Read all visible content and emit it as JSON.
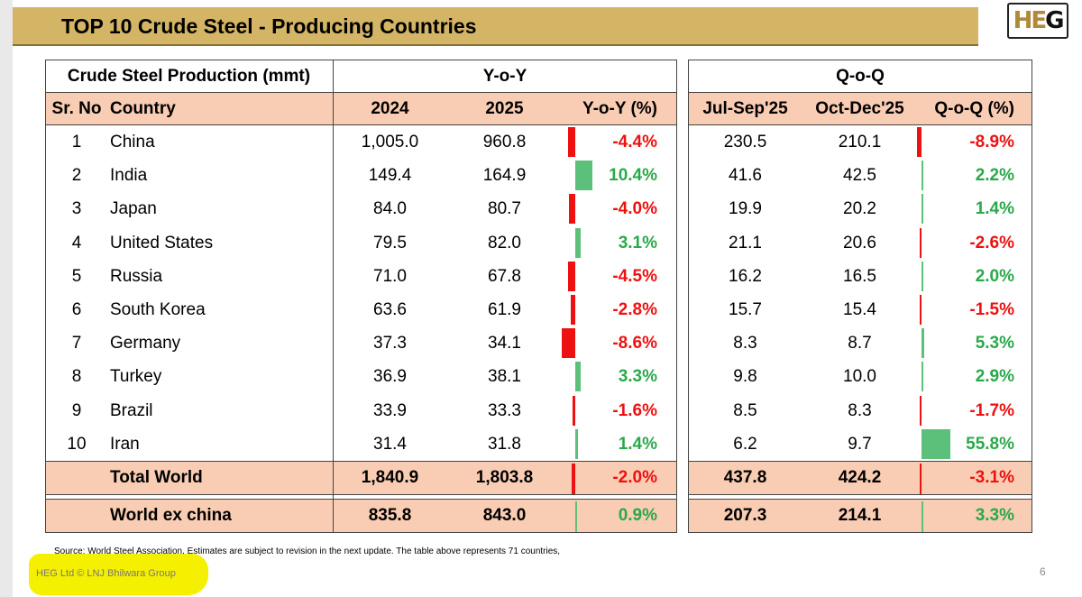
{
  "title": "TOP 10 Crude Steel - Producing Countries",
  "logo_text": "HEG",
  "header": {
    "production_label": "Crude Steel Production (mmt)",
    "yoy_group": "Y-o-Y",
    "qoq_group": "Q-o-Q"
  },
  "columns": {
    "sr_no": "Sr. No",
    "country": "Country",
    "y2024": "2024",
    "y2025": "2025",
    "yoy_pct": "Y-o-Y (%)",
    "jul_sep": "Jul-Sep'25",
    "oct_dec": "Oct-Dec'25",
    "qoq_pct": "Q-o-Q (%)"
  },
  "rows": [
    {
      "sr": "1",
      "country": "China",
      "y2024": "1,005.0",
      "y2025": "960.8",
      "yoy": "-4.4%",
      "yoy_val": -4.4,
      "q3": "230.5",
      "q4": "210.1",
      "qoq": "-8.9%",
      "qoq_val": -8.9
    },
    {
      "sr": "2",
      "country": "India",
      "y2024": "149.4",
      "y2025": "164.9",
      "yoy": "10.4%",
      "yoy_val": 10.4,
      "q3": "41.6",
      "q4": "42.5",
      "qoq": "2.2%",
      "qoq_val": 2.2
    },
    {
      "sr": "3",
      "country": "Japan",
      "y2024": "84.0",
      "y2025": "80.7",
      "yoy": "-4.0%",
      "yoy_val": -4.0,
      "q3": "19.9",
      "q4": "20.2",
      "qoq": "1.4%",
      "qoq_val": 1.4
    },
    {
      "sr": "4",
      "country": "United States",
      "y2024": "79.5",
      "y2025": "82.0",
      "yoy": "3.1%",
      "yoy_val": 3.1,
      "q3": "21.1",
      "q4": "20.6",
      "qoq": "-2.6%",
      "qoq_val": -2.6
    },
    {
      "sr": "5",
      "country": "Russia",
      "y2024": "71.0",
      "y2025": "67.8",
      "yoy": "-4.5%",
      "yoy_val": -4.5,
      "q3": "16.2",
      "q4": "16.5",
      "qoq": "2.0%",
      "qoq_val": 2.0
    },
    {
      "sr": "6",
      "country": "South Korea",
      "y2024": "63.6",
      "y2025": "61.9",
      "yoy": "-2.8%",
      "yoy_val": -2.8,
      "q3": "15.7",
      "q4": "15.4",
      "qoq": "-1.5%",
      "qoq_val": -1.5
    },
    {
      "sr": "7",
      "country": "Germany",
      "y2024": "37.3",
      "y2025": "34.1",
      "yoy": "-8.6%",
      "yoy_val": -8.6,
      "q3": "8.3",
      "q4": "8.7",
      "qoq": "5.3%",
      "qoq_val": 5.3
    },
    {
      "sr": "8",
      "country": "Turkey",
      "y2024": "36.9",
      "y2025": "38.1",
      "yoy": "3.3%",
      "yoy_val": 3.3,
      "q3": "9.8",
      "q4": "10.0",
      "qoq": "2.9%",
      "qoq_val": 2.9
    },
    {
      "sr": "9",
      "country": "Brazil",
      "y2024": "33.9",
      "y2025": "33.3",
      "yoy": "-1.6%",
      "yoy_val": -1.6,
      "q3": "8.5",
      "q4": "8.3",
      "qoq": "-1.7%",
      "qoq_val": -1.7
    },
    {
      "sr": "10",
      "country": "Iran",
      "y2024": "31.4",
      "y2025": "31.8",
      "yoy": "1.4%",
      "yoy_val": 1.4,
      "q3": "6.2",
      "q4": "9.7",
      "qoq": "55.8%",
      "qoq_val": 55.8
    }
  ],
  "total": {
    "label": "Total World",
    "y2024": "1,840.9",
    "y2025": "1,803.8",
    "yoy": "-2.0%",
    "yoy_val": -2.0,
    "q3": "437.8",
    "q4": "424.2",
    "qoq": "-3.1%",
    "qoq_val": -3.1
  },
  "ex_china": {
    "label": "World ex china",
    "y2024": "835.8",
    "y2025": "843.0",
    "yoy": "0.9%",
    "yoy_val": 0.9,
    "q3": "207.3",
    "q4": "214.1",
    "qoq": "3.3%",
    "qoq_val": 3.3
  },
  "source": "Source: World Steel Association. Estimates are subject to revision in the next update. The table above represents 71 countries,",
  "footer": "HEG Ltd  © LNJ Bhilwara Group",
  "page_number": "6",
  "colors": {
    "positive": "#2aa94a",
    "negative": "#ee1111",
    "header_band": "#d4b565",
    "row_fill": "#f9cdb3"
  }
}
